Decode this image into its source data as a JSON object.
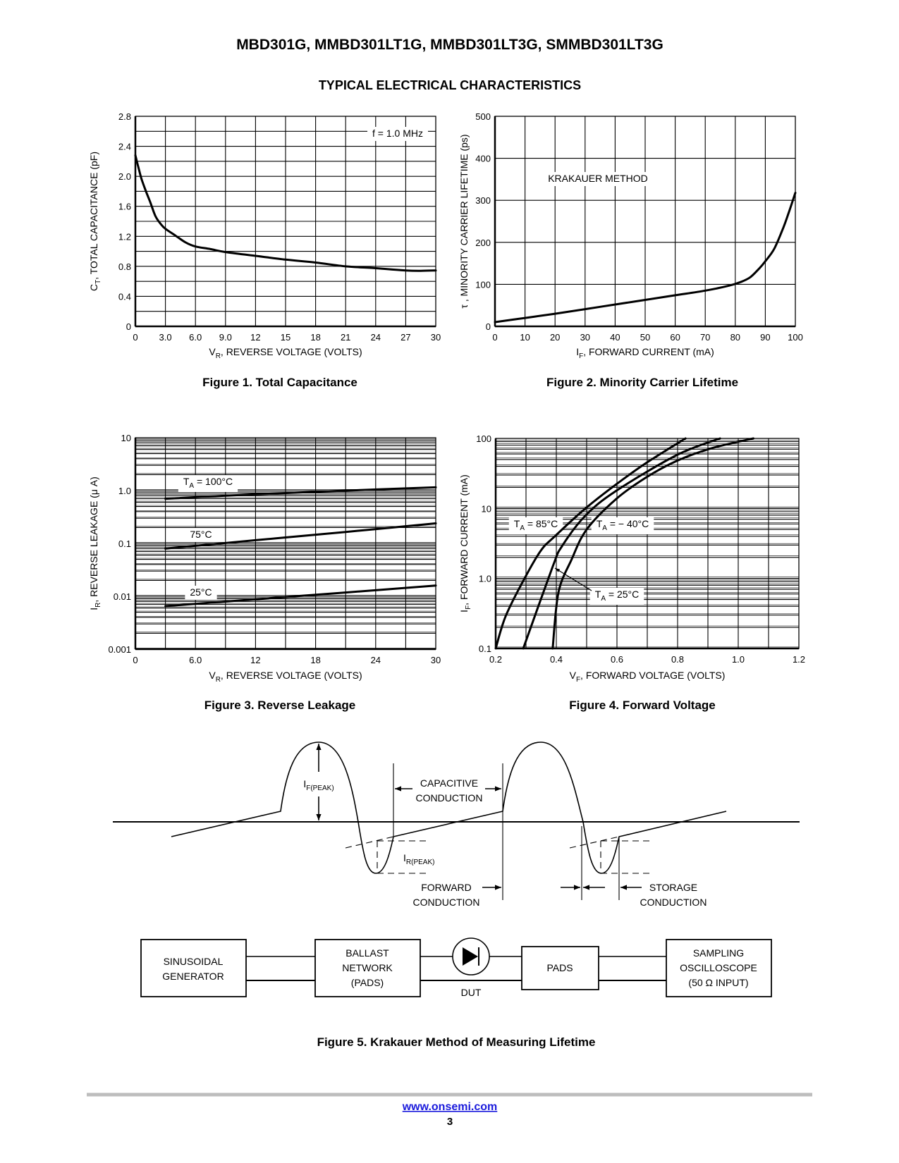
{
  "header": {
    "title": "MBD301G, MMBD301LT1G, MMBD301LT3G, SMMBD301LT3G",
    "section": "TYPICAL ELECTRICAL CHARACTERISTICS"
  },
  "chart_data": [
    {
      "type": "line",
      "caption": "Figure 1. Total Capacitance",
      "xlabel": {
        "main": "V",
        "sub": "R",
        "rest": ", REVERSE VOLTAGE (VOLTS)"
      },
      "ylabel": {
        "main": "C",
        "sub": "T",
        "rest": ", TOTAL CAPACITANCE (pF)"
      },
      "xlim": [
        0,
        30
      ],
      "ylim": [
        0,
        2.8
      ],
      "yscale": "linear",
      "grid": true,
      "xticks": [
        0,
        3,
        6,
        9,
        12,
        15,
        18,
        21,
        24,
        27,
        30
      ],
      "xtick_labels": [
        "0",
        "3.0",
        "6.0",
        "9.0",
        "12",
        "15",
        "18",
        "21",
        "24",
        "27",
        "30"
      ],
      "yticks": [
        0,
        0.4,
        0.8,
        1.2,
        1.6,
        2.0,
        2.4,
        2.8
      ],
      "ytick_labels": [
        "0",
        "0.4",
        "0.8",
        "1.2",
        "1.6",
        "2.0",
        "2.4",
        "2.8"
      ],
      "xgrid": [
        3,
        6,
        9,
        12,
        15,
        18,
        21,
        24,
        27
      ],
      "ygrid_step": 0.2,
      "annotations": [
        {
          "main": "f = 1.0 MHz"
        }
      ],
      "series": [
        {
          "x": [
            0,
            0.3,
            0.6,
            1,
            1.5,
            2,
            2.5,
            3,
            4,
            5,
            6,
            7.5,
            9,
            12,
            15,
            18,
            21,
            24,
            27,
            28.5,
            30
          ],
          "y": [
            2.28,
            2.12,
            1.97,
            1.82,
            1.65,
            1.47,
            1.37,
            1.3,
            1.21,
            1.12,
            1.065,
            1.03,
            0.99,
            0.94,
            0.89,
            0.85,
            0.8,
            0.775,
            0.745,
            0.74,
            0.745
          ]
        }
      ]
    },
    {
      "type": "line",
      "caption": "Figure 2. Minority Carrier Lifetime",
      "xlabel": {
        "main": "I",
        "sub": "F",
        "rest": ", FORWARD CURRENT (mA)"
      },
      "ylabel": {
        "main": "τ , MINORITY CARRIER LIFETIME (ps)"
      },
      "xlim": [
        0,
        100
      ],
      "ylim": [
        0,
        500
      ],
      "yscale": "linear",
      "grid": true,
      "xticks": [
        0,
        10,
        20,
        30,
        40,
        50,
        60,
        70,
        80,
        90,
        100
      ],
      "xtick_labels": [
        "0",
        "10",
        "20",
        "30",
        "40",
        "50",
        "60",
        "70",
        "80",
        "90",
        "100"
      ],
      "yticks": [
        0,
        100,
        200,
        300,
        400,
        500
      ],
      "ytick_labels": [
        "0",
        "100",
        "200",
        "300",
        "400",
        "500"
      ],
      "xgrid": [
        10,
        20,
        30,
        40,
        50,
        60,
        70,
        80,
        90
      ],
      "ygrid_step": 100,
      "annotations": [
        {
          "main": "KRAKAUER METHOD"
        }
      ],
      "series": [
        {
          "x": [
            0,
            10,
            20,
            30,
            40,
            50,
            60,
            70,
            78,
            82,
            85,
            88,
            90,
            93,
            96,
            98,
            100
          ],
          "y": [
            10,
            20,
            30,
            41,
            52,
            63,
            74,
            85,
            97,
            106,
            117,
            138,
            155,
            185,
            235,
            275,
            318
          ]
        }
      ]
    },
    {
      "type": "line",
      "caption": "Figure 3. Reverse Leakage",
      "xlabel": {
        "main": "V",
        "sub": "R",
        "rest": ", REVERSE VOLTAGE (VOLTS)"
      },
      "ylabel": {
        "main": "I",
        "sub": "R",
        "rest": ", REVERSE LEAKAGE (μ A)"
      },
      "xlim": [
        0,
        30
      ],
      "ylim": [
        0.001,
        10
      ],
      "yscale": "log",
      "grid": true,
      "xticks": [
        0,
        6,
        12,
        18,
        24,
        30
      ],
      "xtick_labels": [
        "0",
        "6.0",
        "12",
        "18",
        "24",
        "30"
      ],
      "yticks": [
        0.001,
        0.01,
        0.1,
        1,
        10
      ],
      "ytick_labels": [
        "0.001",
        "0.01",
        "0.1",
        "1.0",
        "10"
      ],
      "xgrid": [
        3,
        6,
        9,
        12,
        15,
        18,
        21,
        24,
        27
      ],
      "annotations": [
        {
          "main": "T",
          "sub": "A",
          "rest": " = 100°C"
        },
        {
          "main": "75°C"
        },
        {
          "main": "25°C"
        }
      ],
      "series": [
        {
          "x": [
            3,
            12,
            21,
            30
          ],
          "y": [
            0.7,
            0.85,
            1.0,
            1.15
          ]
        },
        {
          "x": [
            3,
            12,
            21,
            30
          ],
          "y": [
            0.08,
            0.115,
            0.165,
            0.24
          ]
        },
        {
          "x": [
            3,
            12,
            21,
            30
          ],
          "y": [
            0.0065,
            0.0088,
            0.0118,
            0.016
          ]
        }
      ]
    },
    {
      "type": "line",
      "caption": "Figure 4. Forward Voltage",
      "xlabel": {
        "main": "V",
        "sub": "F",
        "rest": ", FORWARD VOLTAGE (VOLTS)"
      },
      "ylabel": {
        "main": "I",
        "sub": "F",
        "rest": ", FORWARD CURRENT (mA)"
      },
      "xlim": [
        0.2,
        1.2
      ],
      "ylim": [
        0.1,
        100
      ],
      "yscale": "log",
      "grid": true,
      "xticks": [
        0.2,
        0.4,
        0.6,
        0.8,
        1.0,
        1.2
      ],
      "xtick_labels": [
        "0.2",
        "0.4",
        "0.6",
        "0.8",
        "1.0",
        "1.2"
      ],
      "yticks": [
        0.1,
        1,
        10,
        100
      ],
      "ytick_labels": [
        "0.1",
        "1.0",
        "10",
        "100"
      ],
      "xgrid": [
        0.3,
        0.4,
        0.5,
        0.6,
        0.7,
        0.8,
        0.9,
        1.0,
        1.1
      ],
      "annotations": [
        {
          "main": "T",
          "sub": "A",
          "rest": " = 85°C"
        },
        {
          "main": "T",
          "sub": "A",
          "rest": " = − 40°C"
        },
        {
          "main": "T",
          "sub": "A",
          "rest": " = 25°C"
        }
      ],
      "series": [
        {
          "x": [
            0.2,
            0.233,
            0.295,
            0.349,
            0.395,
            0.496,
            0.597,
            0.698,
            0.826
          ],
          "y": [
            0.1,
            0.29,
            1.0,
            2.5,
            4.0,
            10,
            22,
            45,
            100
          ]
        },
        {
          "x": [
            0.388,
            0.407,
            0.45,
            0.5,
            0.597,
            0.698,
            0.798,
            0.915,
            1.05
          ],
          "y": [
            0.1,
            0.63,
            1.85,
            5.0,
            13.6,
            28,
            48,
            73,
            100
          ]
        },
        {
          "x": [
            0.291,
            0.388,
            0.419,
            0.496,
            0.597,
            0.798,
            0.94
          ],
          "y": [
            0.1,
            1.47,
            2.9,
            7.9,
            17.8,
            58,
            100
          ]
        }
      ]
    }
  ],
  "figure5": {
    "caption": "Figure 5. Krakauer Method of Measuring Lifetime",
    "if_peak": {
      "main": "I",
      "sub": "F(PEAK)"
    },
    "ir_peak": {
      "main": "I",
      "sub": "R(PEAK)"
    },
    "capacitive": [
      "CAPACITIVE",
      "CONDUCTION"
    ],
    "forward": [
      "FORWARD",
      "CONDUCTION"
    ],
    "storage": [
      "STORAGE",
      "CONDUCTION"
    ],
    "blocks": {
      "generator": [
        "SINUSOIDAL",
        "GENERATOR"
      ],
      "ballast": [
        "BALLAST",
        "NETWORK",
        "(PADS)"
      ],
      "pads": "PADS",
      "oscilloscope": [
        "SAMPLING",
        "OSCILLOSCOPE",
        "(50 Ω INPUT)"
      ],
      "dut": "DUT"
    },
    "icons": {
      "diode": "diode-symbol-icon"
    }
  },
  "footer": {
    "url": "www.onsemi.com",
    "page": "3"
  },
  "colors": {
    "ink": "#000000",
    "link": "#1a1adc",
    "rule": "#bdbdbd"
  }
}
